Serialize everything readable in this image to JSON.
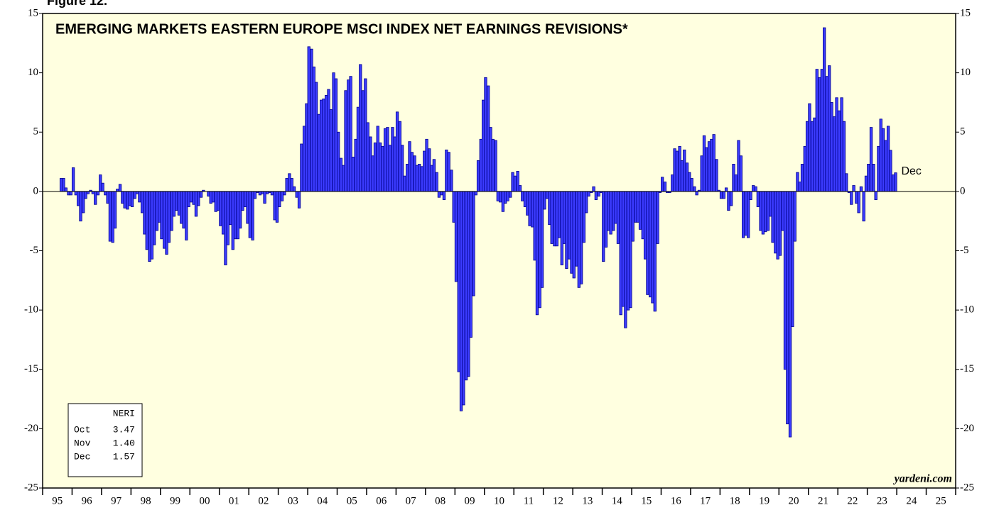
{
  "chart_data": {
    "type": "bar",
    "figure_label": "Figure 12.",
    "title": "EMERGING MARKETS EASTERN EUROPE MSCI INDEX NET EARNINGS REVISIONS*",
    "source": "yardeni.com",
    "annotation": "Dec",
    "color": "#3c3cff",
    "edge_color": "#00008b",
    "background": "#ffffe0",
    "xlim": [
      1995,
      2026
    ],
    "ylim": [
      -25,
      15
    ],
    "yticks": [
      -25,
      -20,
      -15,
      -10,
      -5,
      0,
      5,
      10,
      15
    ],
    "xticks": [
      {
        "value": 1995,
        "label": "95"
      },
      {
        "value": 1996,
        "label": "96"
      },
      {
        "value": 1997,
        "label": "97"
      },
      {
        "value": 1998,
        "label": "98"
      },
      {
        "value": 1999,
        "label": "99"
      },
      {
        "value": 2000,
        "label": "00"
      },
      {
        "value": 2001,
        "label": "01"
      },
      {
        "value": 2002,
        "label": "02"
      },
      {
        "value": 2003,
        "label": "03"
      },
      {
        "value": 2004,
        "label": "04"
      },
      {
        "value": 2005,
        "label": "05"
      },
      {
        "value": 2006,
        "label": "06"
      },
      {
        "value": 2007,
        "label": "07"
      },
      {
        "value": 2008,
        "label": "08"
      },
      {
        "value": 2009,
        "label": "09"
      },
      {
        "value": 2010,
        "label": "10"
      },
      {
        "value": 2011,
        "label": "11"
      },
      {
        "value": 2012,
        "label": "12"
      },
      {
        "value": 2013,
        "label": "13"
      },
      {
        "value": 2014,
        "label": "14"
      },
      {
        "value": 2015,
        "label": "15"
      },
      {
        "value": 2016,
        "label": "16"
      },
      {
        "value": 2017,
        "label": "17"
      },
      {
        "value": 2018,
        "label": "18"
      },
      {
        "value": 2019,
        "label": "19"
      },
      {
        "value": 2020,
        "label": "20"
      },
      {
        "value": 2021,
        "label": "21"
      },
      {
        "value": 2022,
        "label": "22"
      },
      {
        "value": 2023,
        "label": "23"
      },
      {
        "value": 2024,
        "label": "24"
      },
      {
        "value": 2025,
        "label": "25"
      }
    ],
    "legend_box": {
      "header": "NERI",
      "rows": [
        [
          "Oct",
          "3.47"
        ],
        [
          "Nov",
          "1.40"
        ],
        [
          "Dec",
          "1.57"
        ]
      ]
    },
    "x": [
      1995.63,
      1995.71,
      1995.79,
      1995.88,
      1995.96,
      1996.04,
      1996.13,
      1996.21,
      1996.29,
      1996.38,
      1996.46,
      1996.54,
      1996.63,
      1996.71,
      1996.79,
      1996.88,
      1996.96,
      1997.04,
      1997.13,
      1997.21,
      1997.29,
      1997.38,
      1997.46,
      1997.54,
      1997.63,
      1997.71,
      1997.79,
      1997.88,
      1997.96,
      1998.04,
      1998.13,
      1998.21,
      1998.29,
      1998.38,
      1998.46,
      1998.54,
      1998.63,
      1998.71,
      1998.79,
      1998.88,
      1998.96,
      1999.04,
      1999.13,
      1999.21,
      1999.29,
      1999.38,
      1999.46,
      1999.54,
      1999.63,
      1999.71,
      1999.79,
      1999.88,
      1999.96,
      2000.04,
      2000.13,
      2000.21,
      2000.29,
      2000.38,
      2000.46,
      2000.54,
      2000.63,
      2000.71,
      2000.79,
      2000.88,
      2000.96,
      2001.04,
      2001.13,
      2001.21,
      2001.29,
      2001.38,
      2001.46,
      2001.54,
      2001.63,
      2001.71,
      2001.79,
      2001.88,
      2001.96,
      2002.04,
      2002.13,
      2002.21,
      2002.29,
      2002.38,
      2002.46,
      2002.54,
      2002.63,
      2002.71,
      2002.79,
      2002.88,
      2002.96,
      2003.04,
      2003.13,
      2003.21,
      2003.29,
      2003.38,
      2003.46,
      2003.54,
      2003.63,
      2003.71,
      2003.79,
      2003.88,
      2003.96,
      2004.04,
      2004.13,
      2004.21,
      2004.29,
      2004.38,
      2004.46,
      2004.54,
      2004.63,
      2004.71,
      2004.79,
      2004.88,
      2004.96,
      2005.04,
      2005.13,
      2005.21,
      2005.29,
      2005.38,
      2005.46,
      2005.54,
      2005.63,
      2005.71,
      2005.79,
      2005.88,
      2005.96,
      2006.04,
      2006.13,
      2006.21,
      2006.29,
      2006.38,
      2006.46,
      2006.54,
      2006.63,
      2006.71,
      2006.79,
      2006.88,
      2006.96,
      2007.04,
      2007.13,
      2007.21,
      2007.29,
      2007.38,
      2007.46,
      2007.54,
      2007.63,
      2007.71,
      2007.79,
      2007.88,
      2007.96,
      2008.04,
      2008.13,
      2008.21,
      2008.29,
      2008.38,
      2008.46,
      2008.54,
      2008.63,
      2008.71,
      2008.79,
      2008.88,
      2008.96,
      2009.04,
      2009.13,
      2009.21,
      2009.29,
      2009.38,
      2009.46,
      2009.54,
      2009.63,
      2009.71,
      2009.79,
      2009.88,
      2009.96,
      2010.04,
      2010.13,
      2010.21,
      2010.29,
      2010.38,
      2010.46,
      2010.54,
      2010.63,
      2010.71,
      2010.79,
      2010.88,
      2010.96,
      2011.04,
      2011.13,
      2011.21,
      2011.29,
      2011.38,
      2011.46,
      2011.54,
      2011.63,
      2011.71,
      2011.79,
      2011.88,
      2011.96,
      2012.04,
      2012.13,
      2012.21,
      2012.29,
      2012.38,
      2012.46,
      2012.54,
      2012.63,
      2012.71,
      2012.79,
      2012.88,
      2012.96,
      2013.04,
      2013.13,
      2013.21,
      2013.29,
      2013.38,
      2013.46,
      2013.54,
      2013.63,
      2013.71,
      2013.79,
      2013.88,
      2013.96,
      2014.04,
      2014.13,
      2014.21,
      2014.29,
      2014.38,
      2014.46,
      2014.54,
      2014.63,
      2014.71,
      2014.79,
      2014.88,
      2014.96,
      2015.04,
      2015.13,
      2015.21,
      2015.29,
      2015.38,
      2015.46,
      2015.54,
      2015.63,
      2015.71,
      2015.79,
      2015.88,
      2015.96,
      2016.04,
      2016.13,
      2016.21,
      2016.29,
      2016.38,
      2016.46,
      2016.54,
      2016.63,
      2016.71,
      2016.79,
      2016.88,
      2016.96,
      2017.04,
      2017.13,
      2017.21,
      2017.29,
      2017.38,
      2017.46,
      2017.54,
      2017.63,
      2017.71,
      2017.79,
      2017.88,
      2017.96,
      2018.04,
      2018.13,
      2018.21,
      2018.29,
      2018.38,
      2018.46,
      2018.54,
      2018.63,
      2018.71,
      2018.79,
      2018.88,
      2018.96,
      2019.04,
      2019.13,
      2019.21,
      2019.29,
      2019.38,
      2019.46,
      2019.54,
      2019.63,
      2019.71,
      2019.79,
      2019.88,
      2019.96,
      2020.04,
      2020.13,
      2020.21,
      2020.29,
      2020.38,
      2020.46,
      2020.54,
      2020.63,
      2020.71,
      2020.79,
      2020.88,
      2020.96,
      2021.04,
      2021.13,
      2021.21,
      2021.29,
      2021.38,
      2021.46,
      2021.54,
      2021.63,
      2021.71,
      2021.79,
      2021.88,
      2021.96,
      2022.04,
      2022.13,
      2022.21,
      2022.29,
      2022.38,
      2022.46,
      2022.54,
      2022.63,
      2022.71,
      2022.79,
      2022.88,
      2022.96,
      2023.04,
      2023.13,
      2023.21,
      2023.29,
      2023.38,
      2023.46,
      2023.54,
      2023.63,
      2023.71,
      2023.79,
      2023.88,
      2023.96
    ],
    "values": [
      1.1,
      1.1,
      0.3,
      -0.3,
      -0.3,
      2.0,
      -0.3,
      -1.2,
      -2.5,
      -1.8,
      -0.6,
      -0.2,
      0.1,
      -0.2,
      -1.1,
      -0.3,
      1.4,
      0.7,
      -0.3,
      -1.0,
      -4.2,
      -4.3,
      -3.1,
      0.2,
      0.6,
      -1.0,
      -1.4,
      -1.5,
      -1.2,
      -1.3,
      -0.6,
      -0.2,
      -0.9,
      -1.8,
      -3.6,
      -4.9,
      -5.9,
      -5.7,
      -4.5,
      -3.3,
      -2.6,
      -4.0,
      -4.8,
      -5.3,
      -4.3,
      -3.3,
      -2.1,
      -1.6,
      -2.0,
      -2.7,
      -3.1,
      -4.1,
      -1.3,
      -0.9,
      -1.1,
      -2.1,
      -1.2,
      -0.5,
      0.1,
      0.0,
      -0.4,
      -1.0,
      -0.9,
      -1.7,
      -1.6,
      -2.9,
      -3.6,
      -6.2,
      -4.5,
      -2.8,
      -4.9,
      -4.0,
      -4.0,
      -3.1,
      -1.6,
      -1.3,
      -2.7,
      -3.9,
      -4.1,
      -0.6,
      -0.1,
      -0.3,
      -0.2,
      -1.0,
      -0.2,
      -0.1,
      -0.3,
      -2.4,
      -2.6,
      -1.3,
      -0.8,
      -0.3,
      1.1,
      1.5,
      1.1,
      0.4,
      -0.5,
      -1.4,
      4.0,
      5.5,
      7.4,
      12.2,
      12.0,
      10.5,
      9.2,
      6.5,
      7.7,
      7.8,
      8.1,
      8.6,
      6.9,
      10.0,
      9.5,
      5.0,
      2.8,
      2.2,
      8.5,
      9.4,
      9.7,
      2.9,
      4.4,
      7.1,
      10.7,
      8.5,
      9.5,
      5.8,
      4.6,
      3.0,
      4.1,
      5.5,
      4.1,
      3.8,
      5.3,
      5.4,
      3.9,
      5.4,
      4.6,
      6.7,
      5.9,
      3.9,
      1.3,
      2.3,
      4.2,
      3.3,
      3.0,
      2.2,
      2.3,
      2.1,
      3.4,
      4.4,
      3.6,
      2.2,
      2.7,
      1.6,
      -0.5,
      -0.3,
      -0.7,
      3.5,
      3.3,
      1.8,
      -2.6,
      -7.6,
      -15.2,
      -18.5,
      -18.0,
      -15.9,
      -15.6,
      -12.3,
      -8.8,
      -0.3,
      2.6,
      4.4,
      7.7,
      9.6,
      8.9,
      5.4,
      4.4,
      4.3,
      -0.8,
      -0.9,
      -1.7,
      -1.0,
      -0.8,
      -0.5,
      1.6,
      1.3,
      1.7,
      0.5,
      -0.8,
      -1.3,
      -2.0,
      -2.9,
      -3.0,
      -5.8,
      -10.4,
      -9.8,
      -8.1,
      -1.5,
      -0.6,
      -2.8,
      -4.4,
      -4.6,
      -4.6,
      -3.9,
      -6.2,
      -4.4,
      -6.5,
      -5.7,
      -6.9,
      -7.3,
      -6.3,
      -8.1,
      -7.8,
      -4.3,
      -1.8,
      -0.4,
      -0.1,
      0.4,
      -0.7,
      -0.4,
      -0.1,
      -5.9,
      -4.7,
      -3.3,
      -3.6,
      -3.3,
      -2.7,
      -4.4,
      -10.4,
      -9.7,
      -11.5,
      -10.0,
      -9.8,
      -4.2,
      -2.6,
      -2.6,
      -3.2,
      -4.0,
      -5.7,
      -8.7,
      -8.9,
      -9.4,
      -10.1,
      -4.4,
      -0.1,
      1.2,
      0.8,
      -0.1,
      -0.1,
      1.4,
      3.6,
      3.4,
      3.8,
      2.6,
      3.5,
      2.4,
      1.6,
      1.1,
      0.4,
      -0.3,
      0.1,
      3.0,
      4.7,
      3.7,
      4.2,
      4.4,
      4.8,
      2.7,
      0.1,
      -0.6,
      -0.6,
      0.3,
      -1.6,
      -1.2,
      2.3,
      1.4,
      4.3,
      3.0,
      -3.9,
      -3.7,
      -3.9,
      -0.7,
      0.5,
      0.4,
      -1.3,
      -3.3,
      -3.6,
      -3.4,
      -3.3,
      -2.1,
      -4.3,
      -5.2,
      -5.7,
      -5.4,
      -3.3,
      -15.0,
      -19.6,
      -20.7,
      -11.4,
      -4.2,
      1.6,
      0.8,
      2.3,
      3.8,
      5.9,
      7.4,
      5.9,
      6.2,
      10.3,
      9.6,
      10.3,
      13.8,
      9.7,
      10.6,
      7.5,
      6.3,
      7.9,
      6.8,
      7.9,
      5.9,
      1.5,
      -0.1,
      -1.1,
      0.5,
      -1.0,
      -1.8,
      0.4,
      -2.5,
      1.3,
      2.3,
      5.4,
      2.3,
      -0.7,
      3.8,
      6.1,
      5.3,
      4.3,
      5.5,
      3.47,
      1.4,
      1.57
    ]
  }
}
